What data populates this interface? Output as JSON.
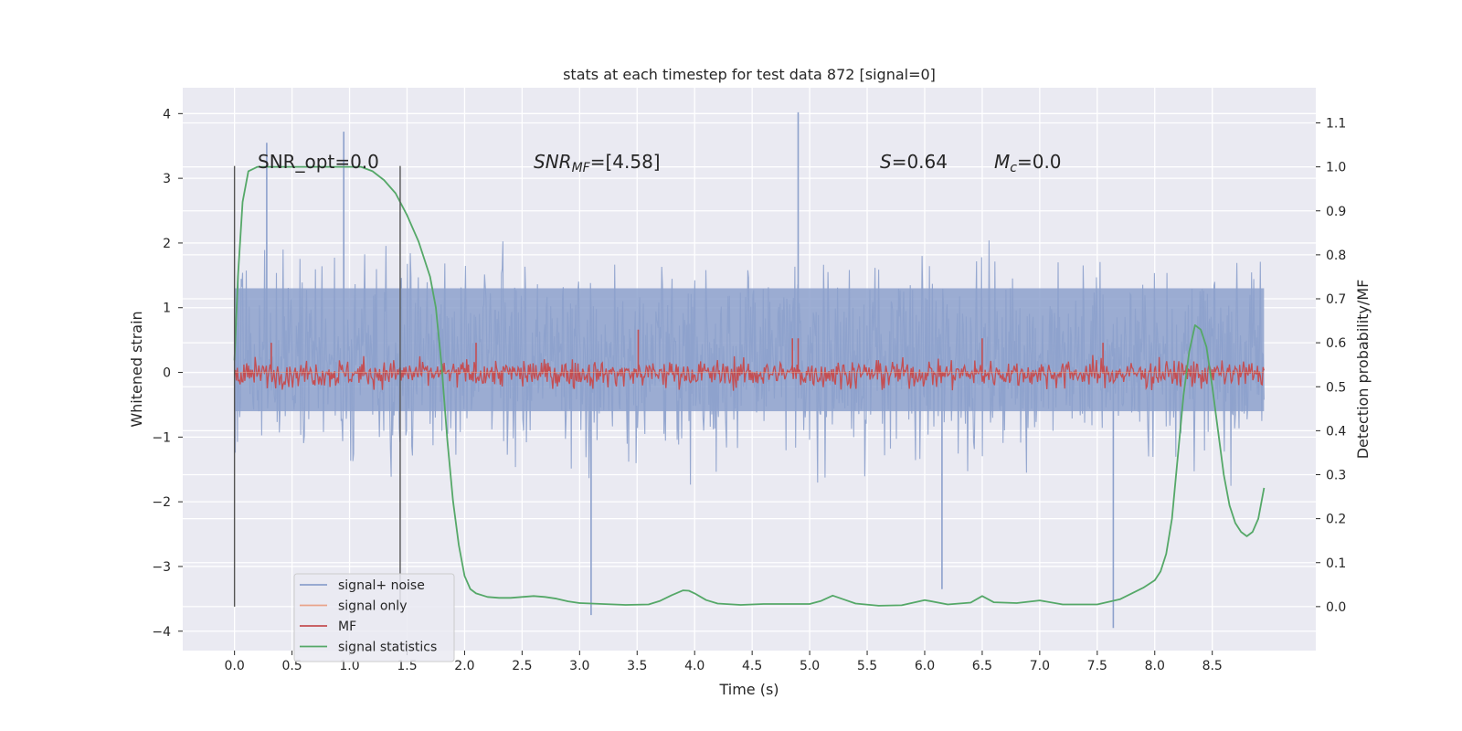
{
  "chart_data": {
    "type": "line",
    "title": "stats at each timestep for test data 872 [signal=0]",
    "xlabel": "Time (s)",
    "ylabel_left": "Whitened strain",
    "ylabel_right": "Detection probability/MF",
    "xlim": [
      -0.45,
      9.4
    ],
    "ylim_left": [
      -4.3,
      4.4
    ],
    "ylim_right": [
      -0.1,
      1.18
    ],
    "xticks": [
      "0.0",
      "0.5",
      "1.0",
      "1.5",
      "2.0",
      "2.5",
      "3.0",
      "3.5",
      "4.0",
      "4.5",
      "5.0",
      "5.5",
      "6.0",
      "6.5",
      "7.0",
      "7.5",
      "8.0",
      "8.5"
    ],
    "yticks_left": [
      "4",
      "3",
      "2",
      "1",
      "0",
      "−1",
      "−2",
      "−3",
      "−4"
    ],
    "yticks_right": [
      "1.1",
      "1.0",
      "0.9",
      "0.8",
      "0.7",
      "0.6",
      "0.5",
      "0.4",
      "0.3",
      "0.2",
      "0.1",
      "0.0"
    ],
    "annotations": {
      "snr_opt": "SNR_opt=0.0",
      "snr_mf_base": "SNR",
      "snr_mf_sub": "MF",
      "snr_mf_val": "=[4.58]",
      "s_italic": "S",
      "s_val": "=0.64",
      "mc_base": "M",
      "mc_sub": "c",
      "mc_val": "=0.0"
    },
    "vlines_s": [
      0.0,
      1.44
    ],
    "legend": {
      "placement": "lower-left",
      "entries": [
        {
          "label": "signal+ noise",
          "color": "#8da1cc"
        },
        {
          "label": "signal only",
          "color": "#e9a38a"
        },
        {
          "label": "MF",
          "color": "#c44e52"
        },
        {
          "label": "signal statistics",
          "color": "#55a868"
        }
      ]
    },
    "series": [
      {
        "name": "signal statistics",
        "axis": "right",
        "x": [
          0.0,
          0.03,
          0.07,
          0.12,
          0.2,
          0.3,
          0.5,
          0.8,
          1.0,
          1.1,
          1.2,
          1.3,
          1.4,
          1.5,
          1.6,
          1.7,
          1.75,
          1.8,
          1.85,
          1.9,
          1.95,
          2.0,
          2.05,
          2.1,
          2.2,
          2.3,
          2.4,
          2.5,
          2.6,
          2.7,
          2.8,
          2.9,
          3.0,
          3.2,
          3.4,
          3.6,
          3.7,
          3.8,
          3.9,
          3.95,
          4.0,
          4.1,
          4.2,
          4.4,
          4.6,
          4.8,
          5.0,
          5.1,
          5.2,
          5.3,
          5.4,
          5.6,
          5.8,
          6.0,
          6.2,
          6.4,
          6.5,
          6.6,
          6.8,
          7.0,
          7.2,
          7.5,
          7.7,
          7.8,
          7.9,
          8.0,
          8.05,
          8.1,
          8.15,
          8.2,
          8.25,
          8.3,
          8.35,
          8.4,
          8.45,
          8.5,
          8.55,
          8.6,
          8.65,
          8.7,
          8.75,
          8.8,
          8.85,
          8.9,
          8.95
        ],
        "values": [
          0.56,
          0.75,
          0.92,
          0.99,
          1.0,
          1.0,
          1.0,
          1.0,
          1.0,
          1.0,
          0.99,
          0.97,
          0.94,
          0.89,
          0.83,
          0.75,
          0.68,
          0.55,
          0.38,
          0.24,
          0.14,
          0.07,
          0.04,
          0.03,
          0.022,
          0.02,
          0.02,
          0.022,
          0.024,
          0.022,
          0.018,
          0.012,
          0.008,
          0.006,
          0.004,
          0.005,
          0.013,
          0.026,
          0.037,
          0.036,
          0.03,
          0.015,
          0.007,
          0.004,
          0.006,
          0.006,
          0.006,
          0.013,
          0.025,
          0.016,
          0.007,
          0.002,
          0.003,
          0.015,
          0.005,
          0.009,
          0.024,
          0.01,
          0.008,
          0.014,
          0.005,
          0.005,
          0.017,
          0.03,
          0.043,
          0.06,
          0.08,
          0.12,
          0.2,
          0.34,
          0.48,
          0.58,
          0.64,
          0.63,
          0.59,
          0.5,
          0.4,
          0.3,
          0.23,
          0.19,
          0.17,
          0.16,
          0.17,
          0.2,
          0.27
        ]
      },
      {
        "name": "MF",
        "axis": "right",
        "x_range": [
          0.0,
          8.95
        ],
        "baseline": 0.53,
        "band": [
          0.49,
          0.58
        ],
        "peaks_x": [
          3.51,
          4.85,
          4.9,
          6.5,
          7.55,
          0.32,
          2.1
        ],
        "peaks_values": [
          0.63,
          0.61,
          0.61,
          0.61,
          0.6,
          0.6,
          0.6
        ]
      },
      {
        "name": "signal+ noise",
        "axis": "left",
        "x_range": [
          0.0,
          8.95
        ],
        "dense_band": [
          -0.6,
          1.3
        ],
        "envelope": [
          -3.0,
          3.0
        ],
        "peaks_x": [
          0.95,
          4.9,
          7.64,
          3.1,
          6.15,
          0.28
        ],
        "peaks_values": [
          3.72,
          4.02,
          -3.95,
          -3.75,
          -3.35,
          3.55
        ]
      },
      {
        "name": "signal only",
        "axis": "left",
        "x_range": [
          0.0,
          8.95
        ],
        "values_constant": 0.0
      }
    ]
  }
}
